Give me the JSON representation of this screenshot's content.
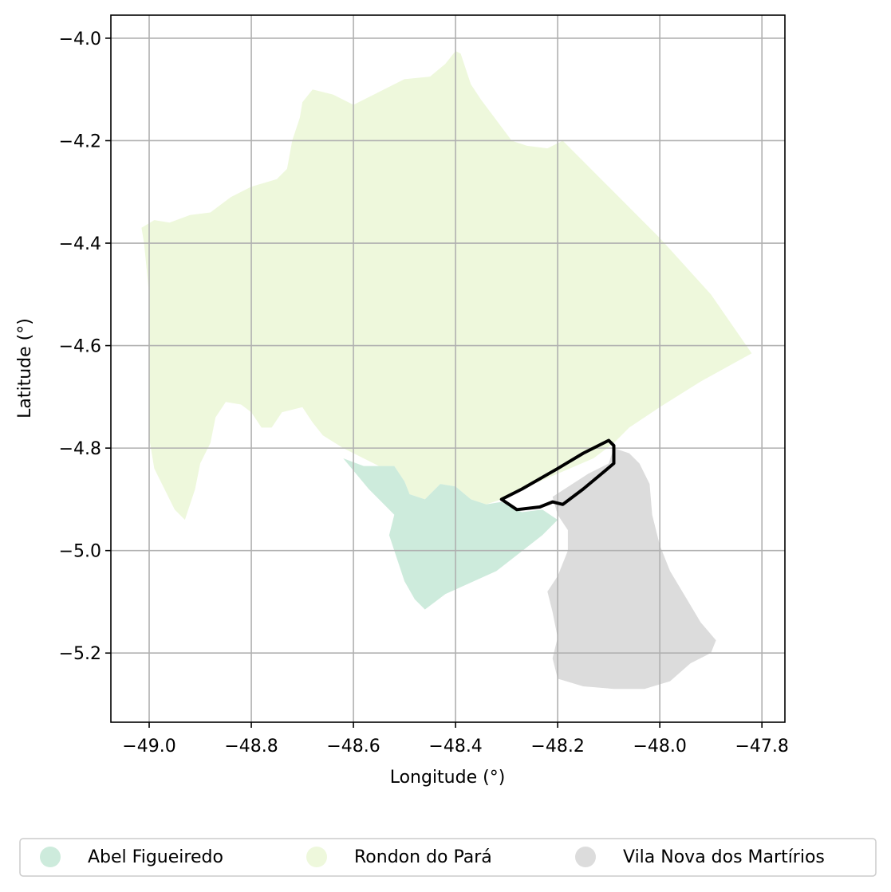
{
  "axes": {
    "xlabel": "Longitude (°)",
    "ylabel": "Latitude (°)",
    "xlim": [
      -49.075,
      -47.755
    ],
    "ylim": [
      -5.335,
      -3.955
    ],
    "xticks": [
      -49.0,
      -48.8,
      -48.6,
      -48.4,
      -48.2,
      -48.0,
      -47.8
    ],
    "yticks": [
      -4.0,
      -4.2,
      -4.4,
      -4.6,
      -4.8,
      -5.0,
      -5.2
    ],
    "xtick_labels": [
      "−49.0",
      "−48.8",
      "−48.6",
      "−48.4",
      "−48.2",
      "−48.0",
      "−47.8"
    ],
    "ytick_labels": [
      "−4.0",
      "−4.2",
      "−4.4",
      "−4.6",
      "−4.8",
      "−5.0",
      "−5.2"
    ],
    "grid": true
  },
  "legend": {
    "placement": "bottom-center",
    "entries": [
      {
        "label": "Abel Figueiredo",
        "color": "#cdebdc"
      },
      {
        "label": "Rondon do Pará",
        "color": "#eef8dc"
      },
      {
        "label": "Vila Nova dos Martírios",
        "color": "#dcdcdc"
      }
    ]
  },
  "regions": [
    {
      "name": "Rondon do Pará",
      "color": "#eef8dc",
      "coords": [
        [
          -49.015,
          -4.37
        ],
        [
          -48.99,
          -4.355
        ],
        [
          -48.96,
          -4.36
        ],
        [
          -48.92,
          -4.345
        ],
        [
          -48.88,
          -4.34
        ],
        [
          -48.84,
          -4.31
        ],
        [
          -48.8,
          -4.29
        ],
        [
          -48.75,
          -4.275
        ],
        [
          -48.73,
          -4.255
        ],
        [
          -48.72,
          -4.2
        ],
        [
          -48.705,
          -4.155
        ],
        [
          -48.7,
          -4.125
        ],
        [
          -48.68,
          -4.1
        ],
        [
          -48.64,
          -4.11
        ],
        [
          -48.6,
          -4.13
        ],
        [
          -48.56,
          -4.11
        ],
        [
          -48.5,
          -4.08
        ],
        [
          -48.45,
          -4.075
        ],
        [
          -48.42,
          -4.05
        ],
        [
          -48.4,
          -4.025
        ],
        [
          -48.39,
          -4.03
        ],
        [
          -48.37,
          -4.09
        ],
        [
          -48.35,
          -4.12
        ],
        [
          -48.32,
          -4.16
        ],
        [
          -48.29,
          -4.2
        ],
        [
          -48.26,
          -4.21
        ],
        [
          -48.22,
          -4.215
        ],
        [
          -48.19,
          -4.2
        ],
        [
          -48.1,
          -4.29
        ],
        [
          -48.0,
          -4.39
        ],
        [
          -47.9,
          -4.5
        ],
        [
          -47.82,
          -4.615
        ],
        [
          -47.92,
          -4.67
        ],
        [
          -48.0,
          -4.72
        ],
        [
          -48.06,
          -4.76
        ],
        [
          -48.09,
          -4.79
        ],
        [
          -48.13,
          -4.82
        ],
        [
          -48.2,
          -4.85
        ],
        [
          -48.27,
          -4.88
        ],
        [
          -48.31,
          -4.9
        ],
        [
          -48.34,
          -4.91
        ],
        [
          -48.37,
          -4.9
        ],
        [
          -48.4,
          -4.875
        ],
        [
          -48.43,
          -4.87
        ],
        [
          -48.46,
          -4.9
        ],
        [
          -48.49,
          -4.89
        ],
        [
          -48.5,
          -4.865
        ],
        [
          -48.52,
          -4.835
        ],
        [
          -48.55,
          -4.835
        ],
        [
          -48.58,
          -4.82
        ],
        [
          -48.62,
          -4.8
        ],
        [
          -48.66,
          -4.775
        ],
        [
          -48.68,
          -4.75
        ],
        [
          -48.7,
          -4.72
        ],
        [
          -48.74,
          -4.73
        ],
        [
          -48.76,
          -4.76
        ],
        [
          -48.78,
          -4.76
        ],
        [
          -48.8,
          -4.73
        ],
        [
          -48.82,
          -4.715
        ],
        [
          -48.85,
          -4.71
        ],
        [
          -48.87,
          -4.74
        ],
        [
          -48.88,
          -4.79
        ],
        [
          -48.9,
          -4.83
        ],
        [
          -48.91,
          -4.88
        ],
        [
          -48.93,
          -4.94
        ],
        [
          -48.95,
          -4.92
        ],
        [
          -48.97,
          -4.88
        ],
        [
          -48.99,
          -4.84
        ],
        [
          -49.0,
          -4.78
        ],
        [
          -49.0,
          -4.5
        ],
        [
          -49.01,
          -4.4
        ]
      ]
    },
    {
      "name": "Abel Figueiredo",
      "color": "#cdebdc",
      "coords": [
        [
          -48.62,
          -4.82
        ],
        [
          -48.58,
          -4.835
        ],
        [
          -48.55,
          -4.835
        ],
        [
          -48.52,
          -4.835
        ],
        [
          -48.5,
          -4.865
        ],
        [
          -48.49,
          -4.89
        ],
        [
          -48.46,
          -4.9
        ],
        [
          -48.43,
          -4.87
        ],
        [
          -48.4,
          -4.875
        ],
        [
          -48.37,
          -4.9
        ],
        [
          -48.34,
          -4.91
        ],
        [
          -48.31,
          -4.905
        ],
        [
          -48.27,
          -4.925
        ],
        [
          -48.23,
          -4.92
        ],
        [
          -48.2,
          -4.94
        ],
        [
          -48.23,
          -4.97
        ],
        [
          -48.32,
          -5.04
        ],
        [
          -48.42,
          -5.085
        ],
        [
          -48.44,
          -5.1
        ],
        [
          -48.46,
          -5.115
        ],
        [
          -48.48,
          -5.095
        ],
        [
          -48.5,
          -5.06
        ],
        [
          -48.52,
          -5.0
        ],
        [
          -48.53,
          -4.97
        ],
        [
          -48.52,
          -4.93
        ],
        [
          -48.55,
          -4.9
        ],
        [
          -48.57,
          -4.88
        ]
      ]
    },
    {
      "name": "Vila Nova dos Martírios",
      "color": "#dcdcdc",
      "coords": [
        [
          -48.09,
          -4.8
        ],
        [
          -48.06,
          -4.81
        ],
        [
          -48.04,
          -4.83
        ],
        [
          -48.02,
          -4.87
        ],
        [
          -48.015,
          -4.93
        ],
        [
          -48.0,
          -4.99
        ],
        [
          -47.98,
          -5.04
        ],
        [
          -47.95,
          -5.09
        ],
        [
          -47.92,
          -5.14
        ],
        [
          -47.89,
          -5.175
        ],
        [
          -47.9,
          -5.2
        ],
        [
          -47.94,
          -5.22
        ],
        [
          -47.98,
          -5.255
        ],
        [
          -48.03,
          -5.27
        ],
        [
          -48.09,
          -5.27
        ],
        [
          -48.15,
          -5.265
        ],
        [
          -48.2,
          -5.25
        ],
        [
          -48.21,
          -5.21
        ],
        [
          -48.2,
          -5.17
        ],
        [
          -48.21,
          -5.12
        ],
        [
          -48.22,
          -5.08
        ],
        [
          -48.2,
          -5.05
        ],
        [
          -48.18,
          -5.0
        ],
        [
          -48.18,
          -4.96
        ],
        [
          -48.2,
          -4.93
        ],
        [
          -48.21,
          -4.895
        ],
        [
          -48.14,
          -4.85
        ],
        [
          -48.1,
          -4.83
        ]
      ]
    }
  ],
  "highlight": {
    "name": "selected-area",
    "color": "#000000",
    "coords": [
      [
        -48.31,
        -4.9
      ],
      [
        -48.27,
        -4.88
      ],
      [
        -48.2,
        -4.84
      ],
      [
        -48.15,
        -4.81
      ],
      [
        -48.1,
        -4.785
      ],
      [
        -48.09,
        -4.795
      ],
      [
        -48.09,
        -4.83
      ],
      [
        -48.12,
        -4.855
      ],
      [
        -48.15,
        -4.88
      ],
      [
        -48.19,
        -4.91
      ],
      [
        -48.21,
        -4.905
      ],
      [
        -48.235,
        -4.915
      ],
      [
        -48.28,
        -4.92
      ]
    ]
  }
}
